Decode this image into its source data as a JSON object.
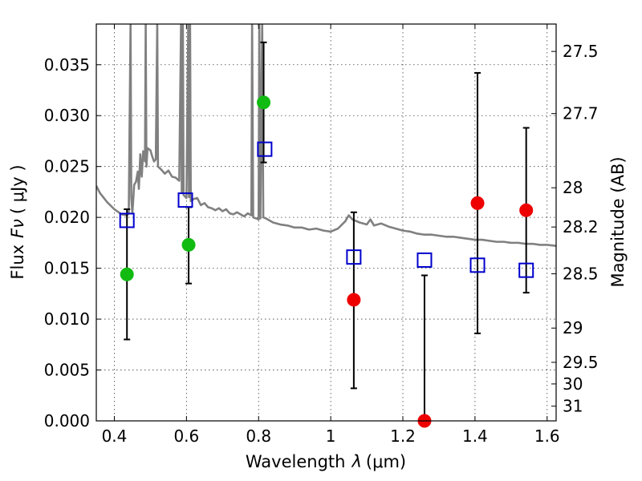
{
  "chart_data": {
    "type": "scatter",
    "xlabel": "Wavelength",
    "xlabel_symbol": "λ",
    "xlabel_unit": "(μm)",
    "ylabel": "Flux",
    "ylabel_symbol": "Fν",
    "ylabel_unit": "( μJy )",
    "y2label": "Magnitude (AB)",
    "xlim": [
      0.35,
      1.625
    ],
    "ylim": [
      0.0,
      0.039
    ],
    "grid": true,
    "x_ticks": [
      {
        "value": 0.4,
        "label": "0.4"
      },
      {
        "value": 0.6,
        "label": "0.6"
      },
      {
        "value": 0.8,
        "label": "0.8"
      },
      {
        "value": 1.0,
        "label": "1"
      },
      {
        "value": 1.2,
        "label": "1.2"
      },
      {
        "value": 1.4,
        "label": "1.4"
      },
      {
        "value": 1.6,
        "label": "1.6"
      }
    ],
    "y_ticks": [
      {
        "value": 0.0,
        "label": "0.000"
      },
      {
        "value": 0.005,
        "label": "0.005"
      },
      {
        "value": 0.01,
        "label": "0.010"
      },
      {
        "value": 0.015,
        "label": "0.015"
      },
      {
        "value": 0.02,
        "label": "0.020"
      },
      {
        "value": 0.025,
        "label": "0.025"
      },
      {
        "value": 0.03,
        "label": "0.030"
      },
      {
        "value": 0.035,
        "label": "0.035"
      }
    ],
    "y2_ticks": [
      {
        "mag": 27.5,
        "label": "27.5"
      },
      {
        "mag": 27.7,
        "label": "27.7"
      },
      {
        "mag": 28.0,
        "label": "28"
      },
      {
        "mag": 28.2,
        "label": "28.2"
      },
      {
        "mag": 28.5,
        "label": "28.5"
      },
      {
        "mag": 29.0,
        "label": "29"
      },
      {
        "mag": 29.5,
        "label": "29.5"
      },
      {
        "mag": 30.0,
        "label": "30"
      },
      {
        "mag": 31.0,
        "label": "31"
      }
    ],
    "measurements": [
      {
        "x": 0.435,
        "y": 0.0144,
        "err_low": 0.008,
        "err_high": 0.0208,
        "color": "green"
      },
      {
        "x": 0.606,
        "y": 0.0173,
        "err_low": 0.0135,
        "err_high": 0.021,
        "color": "green"
      },
      {
        "x": 0.814,
        "y": 0.0313,
        "err_low": 0.0254,
        "err_high": 0.0372,
        "color": "green"
      },
      {
        "x": 1.064,
        "y": 0.0119,
        "err_low": 0.0032,
        "err_high": 0.0205,
        "color": "red"
      },
      {
        "x": 1.26,
        "y": 0.0,
        "err_low": 0.0,
        "err_high": 0.0143,
        "color": "red"
      },
      {
        "x": 1.407,
        "y": 0.0214,
        "err_low": 0.0086,
        "err_high": 0.0342,
        "color": "red"
      },
      {
        "x": 1.542,
        "y": 0.0207,
        "err_low": 0.0126,
        "err_high": 0.0288,
        "color": "red"
      }
    ],
    "model_photometry": [
      {
        "x": 0.435,
        "y": 0.0197
      },
      {
        "x": 0.597,
        "y": 0.0217
      },
      {
        "x": 0.817,
        "y": 0.0267
      },
      {
        "x": 1.064,
        "y": 0.0161
      },
      {
        "x": 1.26,
        "y": 0.0158
      },
      {
        "x": 1.407,
        "y": 0.0153
      },
      {
        "x": 1.542,
        "y": 0.0148
      }
    ],
    "sed_curve": [
      [
        0.35,
        0.0231
      ],
      [
        0.36,
        0.0224
      ],
      [
        0.38,
        0.0215
      ],
      [
        0.4,
        0.0208
      ],
      [
        0.42,
        0.0203
      ],
      [
        0.435,
        0.0202
      ],
      [
        0.44,
        0.0204
      ],
      [
        0.445,
        0.039
      ],
      [
        0.447,
        0.022
      ],
      [
        0.45,
        0.0204
      ],
      [
        0.455,
        0.0232
      ],
      [
        0.46,
        0.0235
      ],
      [
        0.465,
        0.0245
      ],
      [
        0.468,
        0.0228
      ],
      [
        0.472,
        0.0262
      ],
      [
        0.476,
        0.024
      ],
      [
        0.48,
        0.0265
      ],
      [
        0.485,
        0.0255
      ],
      [
        0.487,
        0.039
      ],
      [
        0.489,
        0.025
      ],
      [
        0.492,
        0.0268
      ],
      [
        0.5,
        0.0266
      ],
      [
        0.505,
        0.026
      ],
      [
        0.51,
        0.0255
      ],
      [
        0.515,
        0.0257
      ],
      [
        0.519,
        0.039
      ],
      [
        0.521,
        0.025
      ],
      [
        0.53,
        0.0247
      ],
      [
        0.54,
        0.0243
      ],
      [
        0.55,
        0.0246
      ],
      [
        0.56,
        0.024
      ],
      [
        0.57,
        0.0239
      ],
      [
        0.58,
        0.0236
      ],
      [
        0.585,
        0.039
      ],
      [
        0.587,
        0.0225
      ],
      [
        0.59,
        0.039
      ],
      [
        0.592,
        0.0222
      ],
      [
        0.6,
        0.0219
      ],
      [
        0.605,
        0.039
      ],
      [
        0.607,
        0.022
      ],
      [
        0.61,
        0.039
      ],
      [
        0.612,
        0.0216
      ],
      [
        0.62,
        0.0218
      ],
      [
        0.63,
        0.0219
      ],
      [
        0.64,
        0.0212
      ],
      [
        0.65,
        0.0214
      ],
      [
        0.66,
        0.021
      ],
      [
        0.67,
        0.0209
      ],
      [
        0.68,
        0.0207
      ],
      [
        0.69,
        0.0209
      ],
      [
        0.7,
        0.0206
      ],
      [
        0.71,
        0.0208
      ],
      [
        0.72,
        0.0204
      ],
      [
        0.73,
        0.0203
      ],
      [
        0.74,
        0.0205
      ],
      [
        0.75,
        0.0203
      ],
      [
        0.76,
        0.0201
      ],
      [
        0.77,
        0.0204
      ],
      [
        0.78,
        0.0202
      ],
      [
        0.782,
        0.039
      ],
      [
        0.785,
        0.02
      ],
      [
        0.8,
        0.0198
      ],
      [
        0.802,
        0.039
      ],
      [
        0.805,
        0.0199
      ],
      [
        0.81,
        0.039
      ],
      [
        0.813,
        0.02
      ],
      [
        0.82,
        0.0199
      ],
      [
        0.84,
        0.0195
      ],
      [
        0.86,
        0.0193
      ],
      [
        0.88,
        0.0192
      ],
      [
        0.9,
        0.019
      ],
      [
        0.92,
        0.019
      ],
      [
        0.94,
        0.0188
      ],
      [
        0.96,
        0.0189
      ],
      [
        0.98,
        0.0187
      ],
      [
        1.0,
        0.0186
      ],
      [
        1.02,
        0.0189
      ],
      [
        1.04,
        0.0196
      ],
      [
        1.05,
        0.0202
      ],
      [
        1.06,
        0.0198
      ],
      [
        1.08,
        0.0195
      ],
      [
        1.1,
        0.0193
      ],
      [
        1.11,
        0.0198
      ],
      [
        1.12,
        0.0192
      ],
      [
        1.14,
        0.0194
      ],
      [
        1.16,
        0.0191
      ],
      [
        1.18,
        0.0189
      ],
      [
        1.2,
        0.0187
      ],
      [
        1.22,
        0.0186
      ],
      [
        1.24,
        0.0184
      ],
      [
        1.26,
        0.0183
      ],
      [
        1.28,
        0.0183
      ],
      [
        1.3,
        0.0182
      ],
      [
        1.32,
        0.0181
      ],
      [
        1.34,
        0.0181
      ],
      [
        1.36,
        0.018
      ],
      [
        1.38,
        0.0179
      ],
      [
        1.4,
        0.0178
      ],
      [
        1.42,
        0.0178
      ],
      [
        1.44,
        0.0177
      ],
      [
        1.46,
        0.0176
      ],
      [
        1.48,
        0.0176
      ],
      [
        1.5,
        0.0175
      ],
      [
        1.52,
        0.0175
      ],
      [
        1.54,
        0.0174
      ],
      [
        1.56,
        0.0174
      ],
      [
        1.58,
        0.0173
      ],
      [
        1.6,
        0.0173
      ],
      [
        1.625,
        0.0172
      ]
    ],
    "colors": {
      "green": "#11bb11",
      "red": "#ee0000",
      "model": "#0000cc",
      "sed": "#808080",
      "errorbar": "#000000"
    }
  }
}
